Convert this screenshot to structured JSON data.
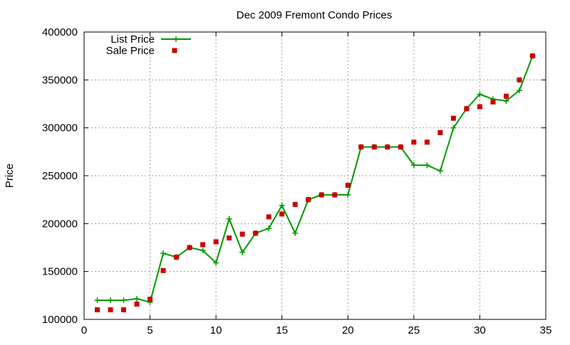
{
  "chart_data": {
    "type": "line",
    "title": "Dec 2009 Fremont Condo Prices",
    "xlabel": "",
    "ylabel": "Price",
    "xlim": [
      0,
      35
    ],
    "ylim": [
      100000,
      400000
    ],
    "xticks": [
      0,
      5,
      10,
      15,
      20,
      25,
      30,
      35
    ],
    "yticks": [
      100000,
      150000,
      200000,
      250000,
      300000,
      350000,
      400000
    ],
    "grid": true,
    "legend_position": "top-left",
    "series": [
      {
        "name": "List Price",
        "style": "line+cross",
        "color": "#009900",
        "x": [
          1,
          2,
          3,
          4,
          5,
          6,
          7,
          8,
          9,
          10,
          11,
          12,
          13,
          14,
          15,
          16,
          17,
          18,
          19,
          20,
          21,
          22,
          23,
          24,
          25,
          26,
          27,
          28,
          29,
          30,
          31,
          32,
          33,
          34
        ],
        "values": [
          120000,
          120000,
          120000,
          121500,
          118000,
          169000,
          165000,
          175000,
          172000,
          159000,
          205000,
          170000,
          190000,
          195000,
          219000,
          190000,
          225000,
          230000,
          230000,
          230000,
          280000,
          280000,
          280000,
          280000,
          261000,
          261000,
          255000,
          300000,
          320000,
          335000,
          330000,
          328000,
          339000,
          375000
        ]
      },
      {
        "name": "Sale Price",
        "style": "square",
        "color": "#cc0000",
        "x": [
          1,
          2,
          3,
          4,
          5,
          6,
          7,
          8,
          9,
          10,
          11,
          12,
          13,
          14,
          15,
          16,
          17,
          18,
          19,
          20,
          21,
          22,
          23,
          24,
          25,
          26,
          27,
          28,
          29,
          30,
          31,
          32,
          33,
          34
        ],
        "values": [
          110000,
          110000,
          110000,
          116000,
          121000,
          151000,
          165000,
          175000,
          178000,
          181000,
          185000,
          189000,
          190000,
          207000,
          210000,
          220000,
          225000,
          230000,
          230000,
          240000,
          280000,
          280000,
          280000,
          280000,
          285000,
          285000,
          295000,
          310000,
          320000,
          322000,
          327000,
          333000,
          350000,
          375000
        ]
      }
    ]
  }
}
